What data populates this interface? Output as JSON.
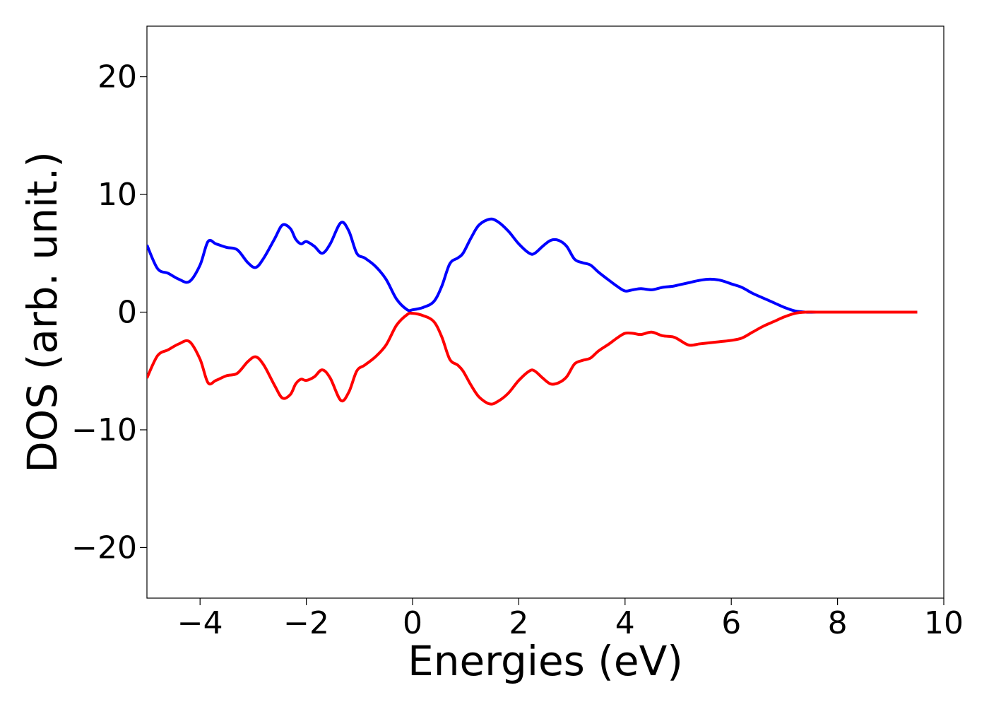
{
  "chart_data": {
    "type": "line",
    "title": "",
    "xlabel": "Energies (eV)",
    "ylabel": "DOS (arb. unit.)",
    "xlim": [
      -5,
      10
    ],
    "ylim": [
      -24.3,
      24.3
    ],
    "xticks": [
      -4,
      -2,
      0,
      2,
      4,
      6,
      8,
      10
    ],
    "xtick_labels": [
      "−4",
      "−2",
      "0",
      "2",
      "4",
      "6",
      "8",
      "10"
    ],
    "yticks": [
      -20,
      -10,
      0,
      10,
      20
    ],
    "ytick_labels": [
      "−20",
      "−10",
      "0",
      "10",
      "20"
    ],
    "grid": false,
    "legend": "none",
    "series": [
      {
        "color": "#0000ff",
        "x": [
          -5.0,
          -4.8,
          -4.6,
          -4.4,
          -4.2,
          -4.0,
          -3.85,
          -3.7,
          -3.5,
          -3.3,
          -3.1,
          -2.95,
          -2.8,
          -2.6,
          -2.45,
          -2.3,
          -2.2,
          -2.1,
          -2.0,
          -1.85,
          -1.7,
          -1.55,
          -1.35,
          -1.2,
          -1.05,
          -0.9,
          -0.7,
          -0.5,
          -0.3,
          -0.1,
          0.0,
          0.2,
          0.4,
          0.55,
          0.7,
          0.85,
          0.95,
          1.1,
          1.25,
          1.45,
          1.6,
          1.8,
          2.0,
          2.2,
          2.3,
          2.45,
          2.6,
          2.75,
          2.9,
          3.05,
          3.2,
          3.35,
          3.5,
          3.7,
          3.85,
          4.0,
          4.15,
          4.3,
          4.5,
          4.7,
          4.9,
          5.0,
          5.2,
          5.4,
          5.6,
          5.8,
          6.0,
          6.2,
          6.4,
          6.6,
          6.8,
          7.0,
          7.2,
          7.4,
          7.6,
          8.0,
          8.5,
          9.0,
          9.5
        ],
        "values": [
          5.7,
          3.7,
          3.3,
          2.8,
          2.6,
          4.0,
          6.0,
          5.8,
          5.5,
          5.3,
          4.2,
          3.8,
          4.6,
          6.2,
          7.4,
          7.1,
          6.2,
          5.8,
          6.0,
          5.6,
          5.0,
          5.8,
          7.6,
          6.9,
          5.0,
          4.6,
          3.9,
          2.8,
          1.1,
          0.2,
          0.2,
          0.4,
          0.9,
          2.2,
          4.1,
          4.6,
          5.0,
          6.3,
          7.4,
          7.9,
          7.7,
          6.9,
          5.8,
          5.0,
          5.0,
          5.6,
          6.1,
          6.1,
          5.6,
          4.5,
          4.2,
          4.0,
          3.4,
          2.7,
          2.2,
          1.8,
          1.9,
          2.0,
          1.9,
          2.1,
          2.2,
          2.3,
          2.5,
          2.7,
          2.8,
          2.7,
          2.4,
          2.1,
          1.6,
          1.2,
          0.8,
          0.4,
          0.1,
          0.0,
          0.0,
          0.0,
          0.0,
          0.0,
          0.0
        ]
      },
      {
        "color": "#ff0000",
        "x": [
          -5.0,
          -4.8,
          -4.6,
          -4.4,
          -4.2,
          -4.0,
          -3.85,
          -3.7,
          -3.5,
          -3.3,
          -3.1,
          -2.95,
          -2.8,
          -2.6,
          -2.45,
          -2.3,
          -2.2,
          -2.1,
          -2.0,
          -1.85,
          -1.7,
          -1.55,
          -1.35,
          -1.2,
          -1.05,
          -0.9,
          -0.7,
          -0.5,
          -0.3,
          -0.1,
          0.0,
          0.2,
          0.4,
          0.55,
          0.7,
          0.85,
          0.95,
          1.1,
          1.25,
          1.45,
          1.6,
          1.8,
          2.0,
          2.2,
          2.3,
          2.45,
          2.6,
          2.75,
          2.9,
          3.05,
          3.2,
          3.35,
          3.5,
          3.7,
          3.85,
          4.0,
          4.15,
          4.3,
          4.5,
          4.7,
          4.9,
          5.0,
          5.2,
          5.4,
          5.6,
          5.8,
          6.0,
          6.2,
          6.4,
          6.6,
          6.8,
          7.0,
          7.2,
          7.4,
          7.6,
          8.0,
          8.5,
          9.0,
          9.5
        ],
        "values": [
          -5.6,
          -3.7,
          -3.2,
          -2.7,
          -2.5,
          -4.0,
          -6.0,
          -5.8,
          -5.4,
          -5.2,
          -4.2,
          -3.8,
          -4.5,
          -6.2,
          -7.3,
          -7.0,
          -6.1,
          -5.7,
          -5.8,
          -5.5,
          -4.9,
          -5.6,
          -7.5,
          -6.8,
          -5.0,
          -4.5,
          -3.8,
          -2.8,
          -1.1,
          -0.2,
          -0.1,
          -0.3,
          -0.8,
          -2.1,
          -4.0,
          -4.5,
          -5.0,
          -6.2,
          -7.2,
          -7.8,
          -7.6,
          -6.9,
          -5.8,
          -5.0,
          -5.0,
          -5.6,
          -6.1,
          -6.0,
          -5.5,
          -4.4,
          -4.1,
          -3.9,
          -3.3,
          -2.7,
          -2.2,
          -1.8,
          -1.8,
          -1.9,
          -1.7,
          -2.0,
          -2.1,
          -2.3,
          -2.8,
          -2.7,
          -2.6,
          -2.5,
          -2.4,
          -2.2,
          -1.7,
          -1.2,
          -0.8,
          -0.4,
          -0.1,
          0.0,
          0.0,
          0.0,
          0.0,
          0.0,
          0.0
        ]
      }
    ]
  }
}
